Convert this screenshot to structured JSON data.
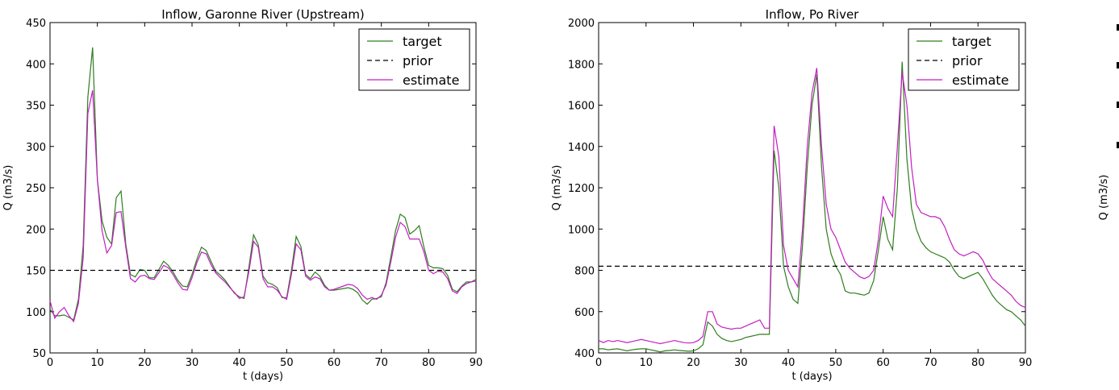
{
  "chart_data": [
    {
      "type": "line",
      "title": "Inflow, Garonne River (Upstream)",
      "xlabel": "t (days)",
      "ylabel": "Q (m3/s)",
      "xlim": [
        0,
        90
      ],
      "ylim": [
        50,
        450
      ],
      "xticks": [
        0,
        10,
        20,
        30,
        40,
        50,
        60,
        70,
        80,
        90
      ],
      "yticks": [
        50,
        100,
        150,
        200,
        250,
        300,
        350,
        400,
        450
      ],
      "legend": "top-right",
      "series": [
        {
          "name": "target",
          "color": "#2e7d1e",
          "dash": "solid",
          "x": [
            0,
            1,
            2,
            3,
            4,
            5,
            6,
            7,
            8,
            9,
            10,
            11,
            12,
            13,
            14,
            15,
            16,
            17,
            18,
            19,
            20,
            21,
            22,
            23,
            24,
            25,
            26,
            27,
            28,
            29,
            30,
            31,
            32,
            33,
            34,
            35,
            36,
            37,
            38,
            39,
            40,
            41,
            42,
            43,
            44,
            45,
            46,
            47,
            48,
            49,
            50,
            51,
            52,
            53,
            54,
            55,
            56,
            57,
            58,
            59,
            60,
            61,
            62,
            63,
            64,
            65,
            66,
            67,
            68,
            69,
            70,
            71,
            72,
            73,
            74,
            75,
            76,
            77,
            78,
            79,
            80,
            81,
            82,
            83,
            84,
            85,
            86,
            87,
            88,
            89,
            90
          ],
          "y": [
            103,
            95,
            95,
            96,
            93,
            90,
            115,
            180,
            360,
            420,
            260,
            210,
            190,
            182,
            238,
            246,
            182,
            145,
            142,
            151,
            150,
            141,
            141,
            151,
            161,
            156,
            148,
            138,
            131,
            130,
            145,
            163,
            178,
            174,
            161,
            149,
            144,
            138,
            130,
            122,
            118,
            116,
            153,
            193,
            181,
            143,
            135,
            133,
            129,
            117,
            117,
            150,
            191,
            179,
            145,
            140,
            148,
            143,
            132,
            126,
            126,
            127,
            128,
            129,
            127,
            123,
            114,
            109,
            115,
            116,
            118,
            135,
            166,
            198,
            218,
            214,
            194,
            198,
            204,
            178,
            156,
            153,
            153,
            152,
            144,
            127,
            124,
            131,
            136,
            136,
            139
          ]
        },
        {
          "name": "prior",
          "color": "#000000",
          "dash": "dashed",
          "x": [
            0,
            90
          ],
          "y": [
            150,
            150
          ]
        },
        {
          "name": "estimate",
          "color": "#c21fc2",
          "dash": "solid",
          "x": [
            0,
            1,
            2,
            3,
            4,
            5,
            6,
            7,
            8,
            9,
            10,
            11,
            12,
            13,
            14,
            15,
            16,
            17,
            18,
            19,
            20,
            21,
            22,
            23,
            24,
            25,
            26,
            27,
            28,
            29,
            30,
            31,
            32,
            33,
            34,
            35,
            36,
            37,
            38,
            39,
            40,
            41,
            42,
            43,
            44,
            45,
            46,
            47,
            48,
            49,
            50,
            51,
            52,
            53,
            54,
            55,
            56,
            57,
            58,
            59,
            60,
            61,
            62,
            63,
            64,
            65,
            66,
            67,
            68,
            69,
            70,
            71,
            72,
            73,
            74,
            75,
            76,
            77,
            78,
            79,
            80,
            81,
            82,
            83,
            84,
            85,
            86,
            87,
            88,
            89,
            90
          ],
          "y": [
            113,
            92,
            100,
            105,
            95,
            88,
            110,
            165,
            340,
            368,
            260,
            198,
            171,
            180,
            220,
            221,
            178,
            140,
            136,
            143,
            144,
            140,
            139,
            147,
            156,
            153,
            145,
            135,
            127,
            126,
            141,
            159,
            172,
            170,
            157,
            147,
            141,
            136,
            129,
            123,
            116,
            118,
            148,
            185,
            178,
            140,
            130,
            130,
            126,
            118,
            115,
            145,
            182,
            175,
            143,
            138,
            142,
            140,
            130,
            126,
            127,
            129,
            131,
            133,
            132,
            128,
            120,
            115,
            117,
            115,
            120,
            132,
            160,
            190,
            208,
            203,
            188,
            188,
            188,
            172,
            150,
            146,
            149,
            148,
            140,
            125,
            122,
            130,
            134,
            136,
            137
          ]
        }
      ]
    },
    {
      "type": "line",
      "title": "Inflow, Po River",
      "xlabel": "t (days)",
      "ylabel": "Q (m3/s)",
      "xlim": [
        0,
        90
      ],
      "ylim": [
        400,
        2000
      ],
      "xticks": [
        0,
        10,
        20,
        30,
        40,
        50,
        60,
        70,
        80,
        90
      ],
      "yticks": [
        400,
        600,
        800,
        1000,
        1200,
        1400,
        1600,
        1800,
        2000
      ],
      "legend": "top-right",
      "series": [
        {
          "name": "target",
          "color": "#2e7d1e",
          "dash": "solid",
          "x": [
            0,
            1,
            2,
            3,
            4,
            5,
            6,
            7,
            8,
            9,
            10,
            11,
            12,
            13,
            14,
            15,
            16,
            17,
            18,
            19,
            20,
            21,
            22,
            23,
            24,
            25,
            26,
            27,
            28,
            29,
            30,
            31,
            32,
            33,
            34,
            35,
            36,
            37,
            38,
            39,
            40,
            41,
            42,
            43,
            44,
            45,
            46,
            47,
            48,
            49,
            50,
            51,
            52,
            53,
            54,
            55,
            56,
            57,
            58,
            59,
            60,
            61,
            62,
            63,
            64,
            65,
            66,
            67,
            68,
            69,
            70,
            71,
            72,
            73,
            74,
            75,
            76,
            77,
            78,
            79,
            80,
            81,
            82,
            83,
            84,
            85,
            86,
            87,
            88,
            89,
            90
          ],
          "y": [
            420,
            420,
            415,
            418,
            420,
            415,
            410,
            415,
            418,
            420,
            420,
            415,
            410,
            405,
            410,
            412,
            415,
            412,
            410,
            408,
            410,
            420,
            440,
            550,
            530,
            490,
            470,
            460,
            455,
            460,
            465,
            475,
            480,
            485,
            490,
            490,
            490,
            1380,
            1200,
            820,
            720,
            660,
            640,
            920,
            1300,
            1600,
            1750,
            1300,
            1000,
            880,
            820,
            780,
            700,
            690,
            690,
            685,
            680,
            690,
            750,
            900,
            1060,
            950,
            900,
            1200,
            1810,
            1340,
            1100,
            1000,
            940,
            910,
            890,
            880,
            870,
            860,
            840,
            800,
            770,
            760,
            770,
            780,
            790,
            760,
            720,
            680,
            650,
            630,
            610,
            600,
            580,
            560,
            530
          ]
        },
        {
          "name": "prior",
          "color": "#000000",
          "dash": "dashed",
          "x": [
            0,
            90
          ],
          "y": [
            820,
            820
          ]
        },
        {
          "name": "estimate",
          "color": "#c21fc2",
          "dash": "solid",
          "x": [
            0,
            1,
            2,
            3,
            4,
            5,
            6,
            7,
            8,
            9,
            10,
            11,
            12,
            13,
            14,
            15,
            16,
            17,
            18,
            19,
            20,
            21,
            22,
            23,
            24,
            25,
            26,
            27,
            28,
            29,
            30,
            31,
            32,
            33,
            34,
            35,
            36,
            37,
            38,
            39,
            40,
            41,
            42,
            43,
            44,
            45,
            46,
            47,
            48,
            49,
            50,
            51,
            52,
            53,
            54,
            55,
            56,
            57,
            58,
            59,
            60,
            61,
            62,
            63,
            64,
            65,
            66,
            67,
            68,
            69,
            70,
            71,
            72,
            73,
            74,
            75,
            76,
            77,
            78,
            79,
            80,
            81,
            82,
            83,
            84,
            85,
            86,
            87,
            88,
            89,
            90
          ],
          "y": [
            460,
            450,
            460,
            455,
            460,
            455,
            450,
            455,
            460,
            465,
            460,
            455,
            450,
            445,
            450,
            455,
            460,
            455,
            450,
            448,
            450,
            460,
            480,
            600,
            600,
            540,
            525,
            520,
            515,
            520,
            520,
            530,
            540,
            550,
            560,
            520,
            520,
            1500,
            1350,
            920,
            800,
            760,
            720,
            1000,
            1400,
            1660,
            1780,
            1400,
            1120,
            1000,
            960,
            900,
            840,
            810,
            790,
            770,
            760,
            770,
            800,
            950,
            1160,
            1100,
            1060,
            1400,
            1760,
            1600,
            1300,
            1120,
            1080,
            1070,
            1060,
            1060,
            1050,
            1010,
            950,
            900,
            880,
            870,
            880,
            890,
            880,
            850,
            800,
            760,
            740,
            720,
            700,
            680,
            650,
            630,
            620
          ]
        }
      ]
    },
    {
      "type": "line",
      "xlabel": "",
      "ylabel": "Q (m3/s)",
      "series": []
    }
  ]
}
